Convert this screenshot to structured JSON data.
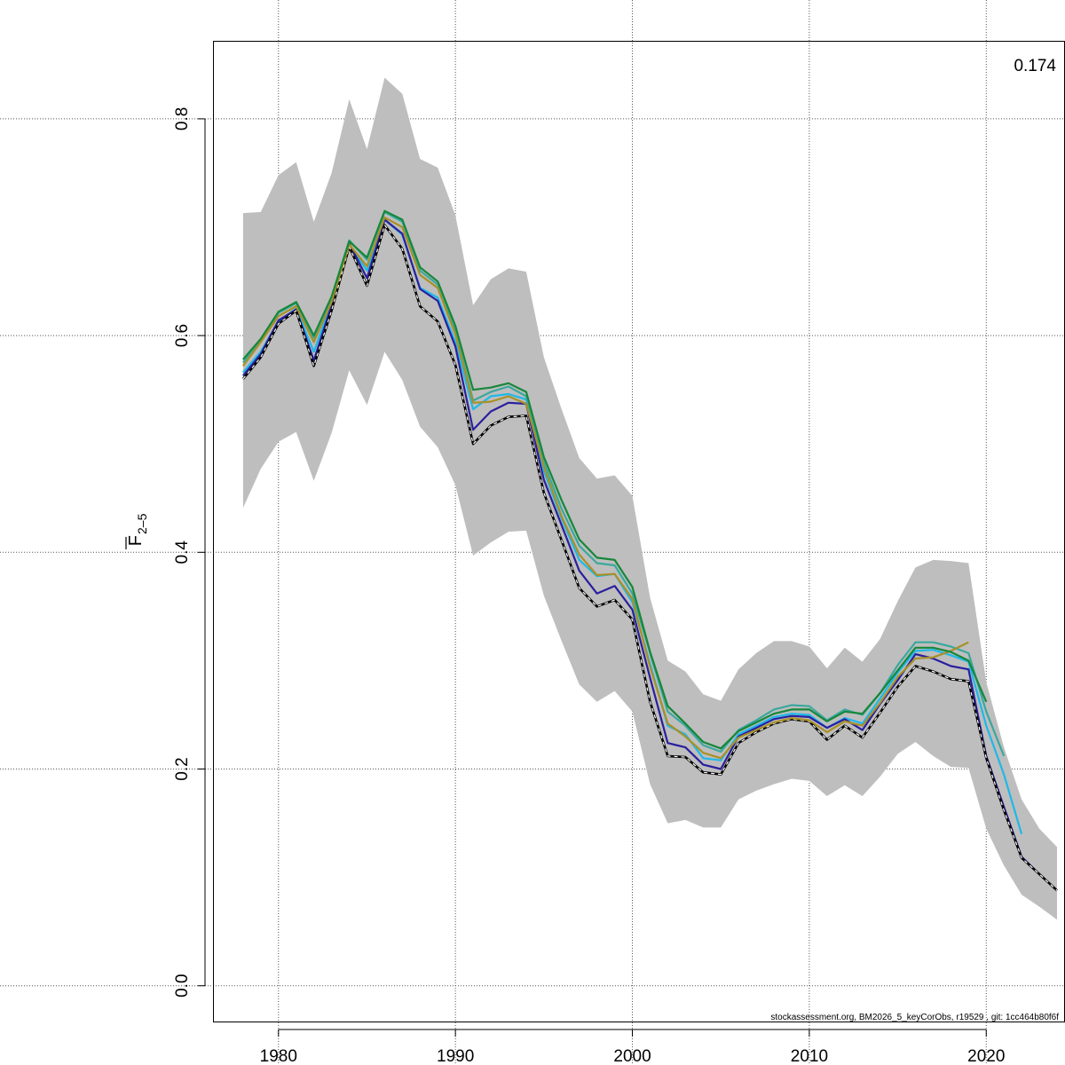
{
  "chart_data": {
    "type": "line",
    "ylabel": {
      "main": "F",
      "subscript": "2–5"
    },
    "xlim": [
      1976.3,
      2024.4
    ],
    "ylim": [
      -0.033,
      0.872
    ],
    "x_ticks": [
      1980,
      1990,
      2000,
      2010,
      2020
    ],
    "x_tick_labels": [
      "1980",
      "1990",
      "2000",
      "2010",
      "2020"
    ],
    "y_ticks": [
      0.0,
      0.2,
      0.4,
      0.6,
      0.8
    ],
    "y_tick_labels": [
      "0.0",
      "0.2",
      "0.4",
      "0.6",
      "0.8"
    ],
    "grid": true,
    "annotation": "0.174",
    "footer": "stockassessment.org, BM2026_5_keyCorObs, r19529 , git: 1cc464b80f6f",
    "confidence_band": {
      "x": [
        1978,
        1979,
        1980,
        1981,
        1982,
        1983,
        1984,
        1985,
        1986,
        1987,
        1988,
        1989,
        1990,
        1991,
        1992,
        1993,
        1994,
        1995,
        1996,
        1997,
        1998,
        1999,
        2000,
        2001,
        2002,
        2003,
        2004,
        2005,
        2006,
        2007,
        2008,
        2009,
        2010,
        2011,
        2012,
        2013,
        2014,
        2015,
        2016,
        2017,
        2018,
        2019,
        2020,
        2021,
        2022,
        2023,
        2024
      ],
      "lower": [
        0.441,
        0.477,
        0.502,
        0.511,
        0.466,
        0.51,
        0.568,
        0.536,
        0.585,
        0.559,
        0.516,
        0.497,
        0.462,
        0.397,
        0.409,
        0.419,
        0.42,
        0.36,
        0.318,
        0.278,
        0.262,
        0.272,
        0.253,
        0.186,
        0.15,
        0.153,
        0.146,
        0.146,
        0.172,
        0.18,
        0.186,
        0.191,
        0.189,
        0.175,
        0.185,
        0.175,
        0.193,
        0.214,
        0.225,
        0.212,
        0.202,
        0.201,
        0.145,
        0.111,
        0.084,
        0.073,
        0.061
      ],
      "upper": [
        0.713,
        0.714,
        0.748,
        0.76,
        0.705,
        0.75,
        0.818,
        0.772,
        0.838,
        0.823,
        0.763,
        0.755,
        0.711,
        0.628,
        0.652,
        0.662,
        0.659,
        0.58,
        0.532,
        0.487,
        0.468,
        0.471,
        0.452,
        0.358,
        0.3,
        0.29,
        0.269,
        0.263,
        0.292,
        0.307,
        0.318,
        0.318,
        0.313,
        0.293,
        0.312,
        0.299,
        0.32,
        0.355,
        0.386,
        0.393,
        0.392,
        0.39,
        0.28,
        0.22,
        0.172,
        0.145,
        0.128
      ]
    },
    "series": [
      {
        "color": "#1fb8e8",
        "style": "solid",
        "x": [
          1978,
          1979,
          1980,
          1981,
          1982,
          1983,
          1984,
          1985,
          1986,
          1987,
          1988,
          1989,
          1990,
          1991,
          1992,
          1993,
          1994,
          1995,
          1996,
          1997,
          1998,
          1999,
          2000,
          2001,
          2002,
          2003,
          2004,
          2005,
          2006,
          2007,
          2008,
          2009,
          2010,
          2011,
          2012,
          2013,
          2014,
          2015,
          2016,
          2017,
          2018,
          2019,
          2020,
          2021,
          2022
        ],
        "values": [
          0.566,
          0.585,
          0.613,
          0.625,
          0.585,
          0.63,
          0.684,
          0.66,
          0.707,
          0.693,
          0.644,
          0.635,
          0.594,
          0.532,
          0.544,
          0.546,
          0.541,
          0.475,
          0.431,
          0.393,
          0.378,
          0.38,
          0.354,
          0.297,
          0.24,
          0.232,
          0.21,
          0.208,
          0.232,
          0.24,
          0.248,
          0.251,
          0.25,
          0.238,
          0.247,
          0.242,
          0.265,
          0.289,
          0.309,
          0.31,
          0.305,
          0.299,
          0.24,
          0.195,
          0.14
        ]
      },
      {
        "color": "#2a1f9e",
        "style": "solid",
        "x": [
          1978,
          1979,
          1980,
          1981,
          1982,
          1983,
          1984,
          1985,
          1986,
          1987,
          1988,
          1989,
          1990,
          1991,
          1992,
          1993,
          1994,
          1995,
          1996,
          1997,
          1998,
          1999,
          2000,
          2001,
          2002,
          2003,
          2004,
          2005,
          2006,
          2007,
          2008,
          2009,
          2010,
          2011,
          2012,
          2013,
          2014,
          2015,
          2016,
          2017,
          2018,
          2019,
          2020,
          2021,
          2022,
          2023,
          2024
        ],
        "values": [
          0.563,
          0.583,
          0.614,
          0.624,
          0.577,
          0.628,
          0.685,
          0.653,
          0.707,
          0.694,
          0.643,
          0.632,
          0.59,
          0.513,
          0.53,
          0.538,
          0.537,
          0.467,
          0.425,
          0.383,
          0.362,
          0.369,
          0.347,
          0.284,
          0.224,
          0.22,
          0.204,
          0.2,
          0.23,
          0.238,
          0.246,
          0.249,
          0.248,
          0.238,
          0.246,
          0.236,
          0.26,
          0.282,
          0.306,
          0.302,
          0.295,
          0.292,
          0.212,
          0.165,
          0.119,
          0.103,
          0.088
        ]
      },
      {
        "color": "#000000",
        "style": "dashed",
        "x": [
          1978,
          1979,
          1980,
          1981,
          1982,
          1983,
          1984,
          1985,
          1986,
          1987,
          1988,
          1989,
          1990,
          1991,
          1992,
          1993,
          1994,
          1995,
          1996,
          1997,
          1998,
          1999,
          2000,
          2001,
          2002,
          2003,
          2004,
          2005,
          2006,
          2007,
          2008,
          2009,
          2010,
          2011,
          2012,
          2013,
          2014,
          2015,
          2016,
          2017,
          2018,
          2019,
          2020,
          2021,
          2022,
          2023,
          2024
        ],
        "values": [
          0.56,
          0.58,
          0.611,
          0.623,
          0.572,
          0.623,
          0.682,
          0.646,
          0.702,
          0.68,
          0.627,
          0.613,
          0.573,
          0.5,
          0.517,
          0.525,
          0.526,
          0.455,
          0.411,
          0.367,
          0.35,
          0.356,
          0.338,
          0.262,
          0.212,
          0.211,
          0.197,
          0.195,
          0.224,
          0.234,
          0.242,
          0.246,
          0.244,
          0.227,
          0.24,
          0.229,
          0.252,
          0.276,
          0.295,
          0.29,
          0.283,
          0.281,
          0.21,
          0.162,
          0.118,
          0.103,
          0.088
        ]
      },
      {
        "color": "#3aa89e",
        "style": "solid",
        "x": [
          1978,
          1979,
          1980,
          1981,
          1982,
          1983,
          1984,
          1985,
          1986,
          1987,
          1988,
          1989,
          1990,
          1991,
          1992,
          1993,
          1994,
          1995,
          1996,
          1997,
          1998,
          1999,
          2000,
          2001,
          2002,
          2003,
          2004,
          2005,
          2006,
          2007,
          2008,
          2009,
          2010,
          2011,
          2012,
          2013,
          2014,
          2015,
          2016,
          2017,
          2018,
          2019,
          2020,
          2021
        ],
        "values": [
          0.575,
          0.596,
          0.621,
          0.63,
          0.598,
          0.635,
          0.688,
          0.67,
          0.714,
          0.705,
          0.66,
          0.647,
          0.604,
          0.54,
          0.548,
          0.553,
          0.544,
          0.483,
          0.44,
          0.406,
          0.39,
          0.388,
          0.362,
          0.307,
          0.253,
          0.24,
          0.222,
          0.216,
          0.236,
          0.245,
          0.255,
          0.259,
          0.258,
          0.245,
          0.255,
          0.25,
          0.27,
          0.296,
          0.317,
          0.317,
          0.313,
          0.307,
          0.253,
          0.212
        ]
      },
      {
        "color": "#a89027",
        "style": "solid",
        "x": [
          1978,
          1979,
          1980,
          1981,
          1982,
          1983,
          1984,
          1985,
          1986,
          1987,
          1988,
          1989,
          1990,
          1991,
          1992,
          1993,
          1994,
          1995,
          1996,
          1997,
          1998,
          1999,
          2000,
          2001,
          2002,
          2003,
          2004,
          2005,
          2006,
          2007,
          2008,
          2009,
          2010,
          2011,
          2012,
          2013,
          2014,
          2015,
          2016,
          2017,
          2018,
          2019
        ],
        "values": [
          0.572,
          0.594,
          0.618,
          0.627,
          0.594,
          0.631,
          0.684,
          0.664,
          0.709,
          0.7,
          0.656,
          0.644,
          0.601,
          0.538,
          0.539,
          0.544,
          0.537,
          0.479,
          0.433,
          0.398,
          0.379,
          0.38,
          0.357,
          0.294,
          0.242,
          0.23,
          0.215,
          0.21,
          0.229,
          0.236,
          0.243,
          0.247,
          0.245,
          0.234,
          0.244,
          0.24,
          0.261,
          0.285,
          0.302,
          0.303,
          0.309,
          0.317
        ]
      },
      {
        "color": "#16873a",
        "style": "solid",
        "x": [
          1978,
          1979,
          1980,
          1981,
          1982,
          1983,
          1984,
          1985,
          1986,
          1987,
          1988,
          1989,
          1990,
          1991,
          1992,
          1993,
          1994,
          1995,
          1996,
          1997,
          1998,
          1999,
          2000,
          2001,
          2002,
          2003,
          2004,
          2005,
          2006,
          2007,
          2008,
          2009,
          2010,
          2011,
          2012,
          2013,
          2014,
          2015,
          2016,
          2017,
          2018,
          2019,
          2020
        ],
        "values": [
          0.578,
          0.597,
          0.622,
          0.631,
          0.6,
          0.636,
          0.687,
          0.672,
          0.715,
          0.707,
          0.663,
          0.65,
          0.609,
          0.55,
          0.552,
          0.556,
          0.548,
          0.488,
          0.448,
          0.412,
          0.395,
          0.393,
          0.368,
          0.308,
          0.258,
          0.242,
          0.225,
          0.219,
          0.235,
          0.243,
          0.251,
          0.255,
          0.255,
          0.244,
          0.253,
          0.251,
          0.27,
          0.291,
          0.312,
          0.312,
          0.308,
          0.3,
          0.262
        ]
      }
    ]
  }
}
